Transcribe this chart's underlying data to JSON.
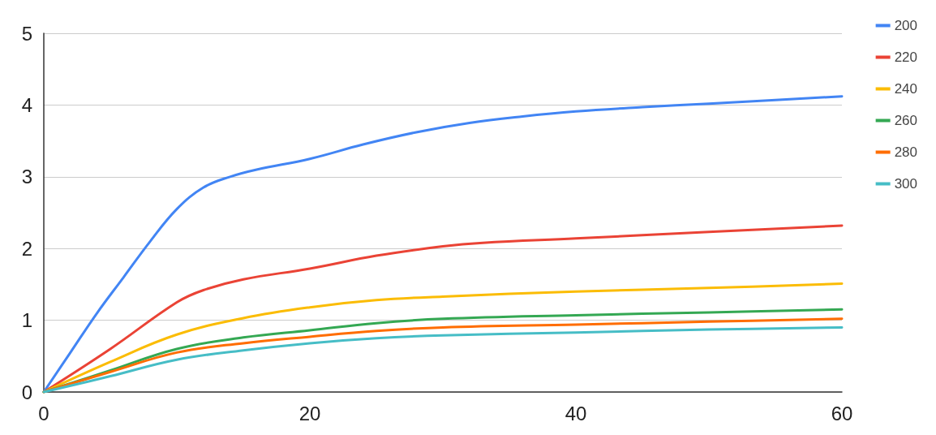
{
  "chart_data": {
    "type": "line",
    "xlim": [
      0,
      60
    ],
    "xticks": [
      0,
      20,
      40,
      60
    ],
    "ylim": [
      0,
      5
    ],
    "yticks": [
      0,
      1,
      2,
      3,
      4,
      5
    ],
    "grid": "y",
    "legend": "top right",
    "marker": "none",
    "line_style": "solid",
    "series": [
      {
        "name": "200",
        "color": "#4285f4",
        "x": [
          0,
          2,
          4,
          6,
          8,
          10,
          12,
          14,
          16,
          20,
          24,
          28,
          32,
          36,
          40,
          45,
          50,
          55,
          60
        ],
        "values": [
          0,
          0.55,
          1.1,
          1.6,
          2.1,
          2.55,
          2.85,
          3.0,
          3.1,
          3.25,
          3.45,
          3.62,
          3.75,
          3.84,
          3.91,
          3.97,
          4.02,
          4.07,
          4.12
        ]
      },
      {
        "name": "220",
        "color": "#ea4335",
        "x": [
          0,
          5,
          10,
          12,
          15,
          20,
          25,
          30,
          33,
          40,
          50,
          60
        ],
        "values": [
          0,
          0.6,
          1.25,
          1.42,
          1.57,
          1.72,
          1.9,
          2.03,
          2.08,
          2.14,
          2.23,
          2.32
        ]
      },
      {
        "name": "240",
        "color": "#fbbc04",
        "x": [
          0,
          5,
          10,
          15,
          20,
          25,
          30,
          40,
          50,
          60
        ],
        "values": [
          0,
          0.42,
          0.8,
          1.03,
          1.18,
          1.28,
          1.33,
          1.4,
          1.45,
          1.51
        ]
      },
      {
        "name": "260",
        "color": "#34a853",
        "x": [
          0,
          5,
          10,
          15,
          20,
          25,
          30,
          40,
          50,
          60
        ],
        "values": [
          0,
          0.3,
          0.6,
          0.76,
          0.86,
          0.96,
          1.02,
          1.07,
          1.11,
          1.15
        ]
      },
      {
        "name": "280",
        "color": "#ff6d01",
        "x": [
          0,
          5,
          10,
          15,
          20,
          25,
          30,
          40,
          50,
          60
        ],
        "values": [
          0,
          0.28,
          0.55,
          0.68,
          0.77,
          0.85,
          0.9,
          0.94,
          0.98,
          1.02
        ]
      },
      {
        "name": "300",
        "color": "#46bdc6",
        "x": [
          0,
          5,
          10,
          15,
          20,
          25,
          30,
          40,
          50,
          60
        ],
        "values": [
          0,
          0.22,
          0.45,
          0.58,
          0.68,
          0.75,
          0.79,
          0.83,
          0.87,
          0.9
        ]
      }
    ]
  }
}
